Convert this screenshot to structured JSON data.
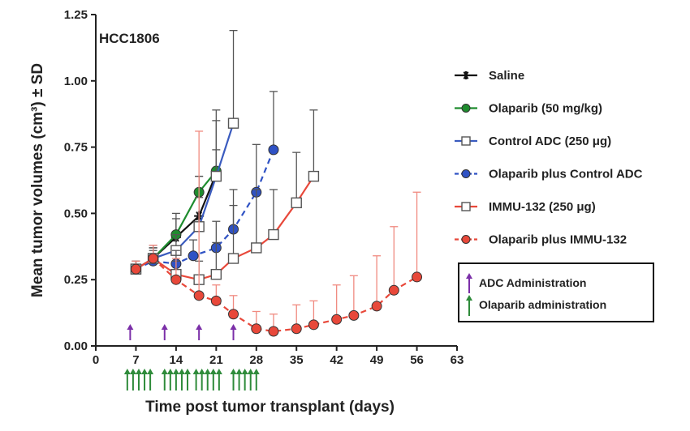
{
  "chart_data": {
    "type": "line",
    "panel_label": "HCC1806",
    "xlabel": "Time post tumor transplant (days)",
    "ylabel": "Mean tumor volumes (cm³) ± SD",
    "xlim": [
      0,
      63
    ],
    "ylim": [
      0,
      1.25
    ],
    "xticks": [
      0,
      7,
      14,
      21,
      28,
      35,
      42,
      49,
      56,
      63
    ],
    "yticks": [
      0.0,
      0.25,
      0.5,
      0.75,
      1.0,
      1.25
    ],
    "ytick_labels": [
      "0.00",
      "0.25",
      "0.50",
      "0.75",
      "1.00",
      "1.25"
    ],
    "grid": false,
    "legend_position": "right",
    "series": [
      {
        "name": "Saline",
        "color": "#111111",
        "marker": "asterisk",
        "dashed": false,
        "err_color": "#555555",
        "x": [
          7,
          10,
          14,
          18,
          21
        ],
        "y": [
          0.29,
          0.33,
          0.41,
          0.49,
          0.65
        ],
        "err": [
          0.03,
          0.05,
          0.07,
          0.15,
          0.24
        ]
      },
      {
        "name": "Olaparib (50 mg/kg)",
        "color": "#1e8c2e",
        "marker": "circle-filled",
        "dashed": false,
        "err_color": "#555555",
        "x": [
          7,
          10,
          14,
          18,
          21
        ],
        "y": [
          0.29,
          0.33,
          0.42,
          0.58,
          0.66
        ],
        "err": [
          0.03,
          0.04,
          0.08,
          0.06,
          0.08
        ]
      },
      {
        "name": "Control ADC (250 μg)",
        "color": "#3a5bbf",
        "marker": "square-open",
        "dashed": false,
        "err_color": "#555555",
        "x": [
          7,
          10,
          14,
          18,
          21,
          24
        ],
        "y": [
          0.29,
          0.33,
          0.36,
          0.45,
          0.64,
          0.84
        ],
        "err": [
          0.03,
          0.04,
          0.06,
          0.11,
          0.21,
          0.35
        ]
      },
      {
        "name": "Olaparib plus Control ADC",
        "color": "#2f52c4",
        "marker": "circle-filled",
        "dashed": true,
        "err_color": "#555555",
        "x": [
          7,
          10,
          14,
          17,
          21,
          24,
          28,
          31
        ],
        "y": [
          0.29,
          0.32,
          0.31,
          0.34,
          0.37,
          0.44,
          0.58,
          0.74
        ],
        "err": [
          0.03,
          0.04,
          0.05,
          0.06,
          0.1,
          0.15,
          0.18,
          0.22
        ]
      },
      {
        "name": "IMMU-132 (250 μg)",
        "color": "#e8483a",
        "marker": "square-open",
        "dashed": false,
        "err_color": "#555555",
        "x": [
          7,
          10,
          14,
          18,
          21,
          24,
          28,
          31,
          35,
          38
        ],
        "y": [
          0.29,
          0.33,
          0.27,
          0.25,
          0.27,
          0.33,
          0.37,
          0.42,
          0.54,
          0.64
        ],
        "err": [
          0.03,
          0.04,
          0.05,
          0.07,
          0.12,
          0.2,
          0.22,
          0.17,
          0.19,
          0.25
        ]
      },
      {
        "name": "Olaparib plus IMMU-132",
        "color": "#e8483a",
        "marker": "circle-filled",
        "dashed": true,
        "err_color": "#f08a80",
        "x": [
          7,
          10,
          14,
          18,
          21,
          24,
          28,
          31,
          35,
          38,
          42,
          45,
          49,
          52,
          56
        ],
        "y": [
          0.29,
          0.33,
          0.25,
          0.19,
          0.17,
          0.12,
          0.065,
          0.055,
          0.065,
          0.08,
          0.1,
          0.115,
          0.15,
          0.21,
          0.26
        ],
        "err": [
          0.03,
          0.05,
          0.08,
          0.62,
          0.06,
          0.07,
          0.065,
          0.065,
          0.09,
          0.09,
          0.13,
          0.15,
          0.19,
          0.24,
          0.32
        ]
      }
    ],
    "adc_administration_days": [
      6,
      12,
      18,
      24
    ],
    "olaparib_administration_days": [
      5.5,
      6.5,
      7.5,
      8.5,
      9.5,
      12,
      13,
      14,
      15,
      16,
      17.5,
      18.5,
      19.5,
      20.5,
      21.5,
      24,
      25,
      26,
      27,
      28
    ],
    "administration_legend": {
      "adc": {
        "label": "ADC Administration",
        "color": "#7b2fa8"
      },
      "olaparib": {
        "label": "Olaparib administration",
        "color": "#2e8b3a"
      }
    }
  }
}
